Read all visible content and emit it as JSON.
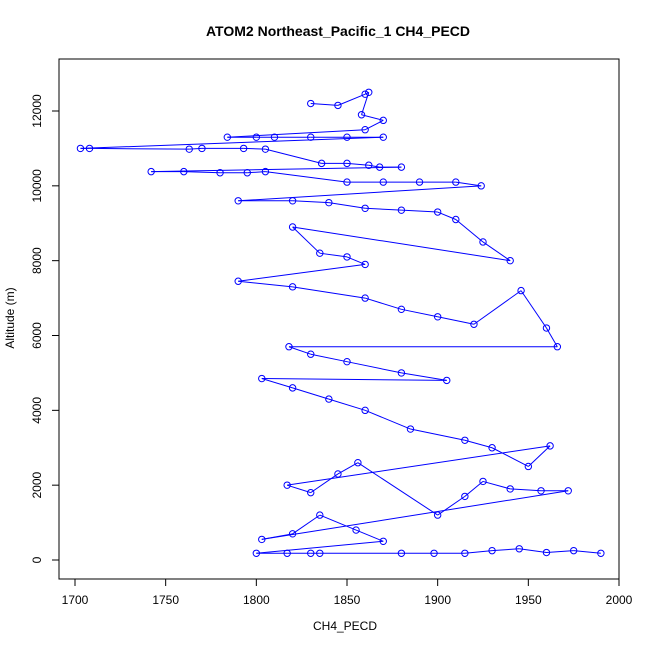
{
  "chart_data": {
    "type": "scatter",
    "title": "ATOM2 Northeast_Pacific_1 CH4_PECD",
    "xlabel": "CH4_PECD",
    "ylabel": "Altitude (m)",
    "xlim": [
      1700,
      2000
    ],
    "ylim": [
      0,
      12000
    ],
    "x_ticks": [
      1700,
      1750,
      1800,
      1850,
      1900,
      1950,
      2000
    ],
    "y_ticks": [
      0,
      2000,
      4000,
      6000,
      8000,
      10000,
      12000
    ],
    "x_tick_labels": [
      "1700",
      "1750",
      "1800",
      "1850",
      "1900",
      "1950",
      "2000"
    ],
    "y_tick_labels": [
      "0",
      "2000",
      "4000",
      "6000",
      "8000",
      "10000",
      "12000"
    ],
    "grid": false,
    "style": "points connected by lines",
    "series": [
      {
        "color": "#0000ff",
        "marker": "open-circle",
        "points": [
          [
            1830,
            12200
          ],
          [
            1845,
            12150
          ],
          [
            1860,
            12450
          ],
          [
            1862,
            12500
          ],
          [
            1858,
            11900
          ],
          [
            1870,
            11750
          ],
          [
            1860,
            11500
          ],
          [
            1784,
            11300
          ],
          [
            1800,
            11300
          ],
          [
            1810,
            11300
          ],
          [
            1830,
            11300
          ],
          [
            1850,
            11300
          ],
          [
            1870,
            11300
          ],
          [
            1703,
            11000
          ],
          [
            1708,
            11000
          ],
          [
            1763,
            10980
          ],
          [
            1770,
            11000
          ],
          [
            1793,
            11000
          ],
          [
            1805,
            10980
          ],
          [
            1836,
            10600
          ],
          [
            1850,
            10600
          ],
          [
            1862,
            10550
          ],
          [
            1868,
            10500
          ],
          [
            1880,
            10500
          ],
          [
            1742,
            10380
          ],
          [
            1760,
            10380
          ],
          [
            1780,
            10350
          ],
          [
            1795,
            10350
          ],
          [
            1805,
            10380
          ],
          [
            1850,
            10100
          ],
          [
            1870,
            10100
          ],
          [
            1890,
            10100
          ],
          [
            1910,
            10100
          ],
          [
            1924,
            10000
          ],
          [
            1790,
            9600
          ],
          [
            1820,
            9600
          ],
          [
            1840,
            9550
          ],
          [
            1860,
            9400
          ],
          [
            1880,
            9350
          ],
          [
            1900,
            9300
          ],
          [
            1910,
            9100
          ],
          [
            1925,
            8500
          ],
          [
            1940,
            8000
          ],
          [
            1820,
            8900
          ],
          [
            1835,
            8200
          ],
          [
            1850,
            8100
          ],
          [
            1860,
            7900
          ],
          [
            1790,
            7450
          ],
          [
            1820,
            7300
          ],
          [
            1860,
            7000
          ],
          [
            1880,
            6700
          ],
          [
            1900,
            6500
          ],
          [
            1920,
            6300
          ],
          [
            1946,
            7200
          ],
          [
            1960,
            6200
          ],
          [
            1966,
            5700
          ],
          [
            1818,
            5700
          ],
          [
            1830,
            5500
          ],
          [
            1850,
            5300
          ],
          [
            1880,
            5000
          ],
          [
            1905,
            4800
          ],
          [
            1803,
            4850
          ],
          [
            1820,
            4600
          ],
          [
            1840,
            4300
          ],
          [
            1860,
            4000
          ],
          [
            1885,
            3500
          ],
          [
            1915,
            3200
          ],
          [
            1930,
            3000
          ],
          [
            1950,
            2500
          ],
          [
            1962,
            3050
          ],
          [
            1817,
            2000
          ],
          [
            1830,
            1800
          ],
          [
            1845,
            2300
          ],
          [
            1856,
            2600
          ],
          [
            1900,
            1200
          ],
          [
            1915,
            1700
          ],
          [
            1925,
            2100
          ],
          [
            1940,
            1900
          ],
          [
            1957,
            1850
          ],
          [
            1972,
            1850
          ],
          [
            1803,
            550
          ],
          [
            1820,
            700
          ],
          [
            1835,
            1200
          ],
          [
            1855,
            800
          ],
          [
            1870,
            500
          ],
          [
            1800,
            180
          ],
          [
            1817,
            180
          ],
          [
            1830,
            180
          ],
          [
            1835,
            180
          ],
          [
            1880,
            180
          ],
          [
            1898,
            180
          ],
          [
            1915,
            180
          ],
          [
            1930,
            250
          ],
          [
            1945,
            300
          ],
          [
            1960,
            200
          ],
          [
            1975,
            250
          ],
          [
            1990,
            180
          ]
        ]
      }
    ]
  }
}
